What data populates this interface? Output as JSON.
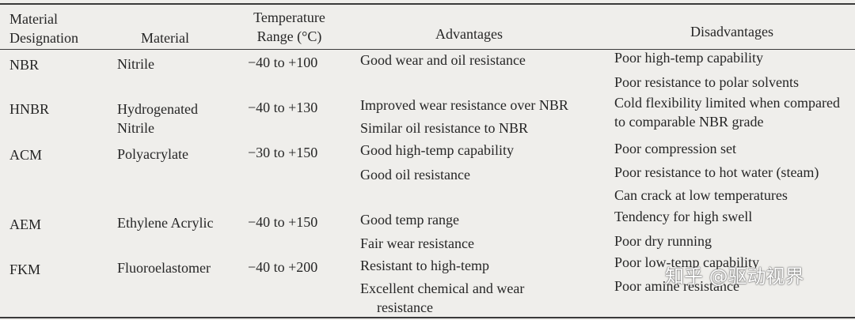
{
  "table": {
    "header": [
      "Material Designation",
      "Material",
      "Temperature Range (°C)",
      "Advantages",
      "Disadvantages"
    ],
    "rows": [
      {
        "designation": "NBR",
        "material": "Nitrile",
        "range": "−40 to +100",
        "advantages": [
          "Good wear and oil resistance"
        ],
        "disadvantages": [
          "Poor high-temp capability",
          "Poor resistance to polar solvents"
        ]
      },
      {
        "designation": "HNBR",
        "material": "Hydrogenated Nitrile",
        "range": "−40 to +130",
        "advantages": [
          "Improved wear resistance over NBR",
          "Similar oil resistance to NBR"
        ],
        "disadvantages": [
          "Cold flexibility limited when compared to comparable NBR grade"
        ]
      },
      {
        "designation": "ACM",
        "material": "Polyacrylate",
        "range": "−30 to +150",
        "advantages": [
          "Good high-temp capability",
          "Good oil resistance"
        ],
        "disadvantages": [
          "Poor compression set",
          "Poor resistance to hot water (steam)",
          "Can crack at low temperatures"
        ]
      },
      {
        "designation": "AEM",
        "material": "Ethylene Acrylic",
        "range": "−40 to +150",
        "advantages": [
          "Good temp range",
          "Fair wear resistance"
        ],
        "disadvantages": [
          "Tendency for high swell",
          "Poor dry running"
        ]
      },
      {
        "designation": "FKM",
        "material": "Fluoroelastomer",
        "range": "−40 to +200",
        "advantages": [
          "Resistant to high-temp",
          "Excellent chemical and wear resistance"
        ],
        "disadvantages": [
          "Poor low-temp capability",
          "Poor amine resistance"
        ]
      }
    ]
  },
  "watermark": "知乎 @驱动视界"
}
